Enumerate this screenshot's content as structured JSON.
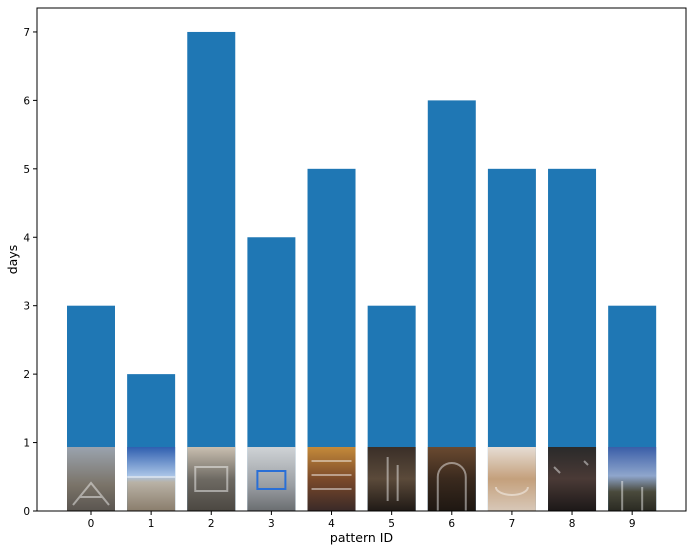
{
  "chart_data": {
    "type": "bar",
    "title": "",
    "xlabel": "pattern ID",
    "ylabel": "days",
    "categories": [
      "0",
      "1",
      "2",
      "3",
      "4",
      "5",
      "6",
      "7",
      "8",
      "9"
    ],
    "values": [
      3,
      2,
      7,
      4,
      5,
      3,
      6,
      5,
      5,
      3
    ],
    "ylim": [
      0,
      7.35
    ],
    "yticks": [
      "0",
      "1",
      "2",
      "3",
      "4",
      "5",
      "6",
      "7"
    ],
    "bar_color": "#1f77b4",
    "grid": false,
    "legend": "none",
    "thumbnails": [
      {
        "pattern": "0",
        "icon": "street-bicycle-photo"
      },
      {
        "pattern": "1",
        "icon": "beach-sky-photo"
      },
      {
        "pattern": "2",
        "icon": "kitchen-people-photo"
      },
      {
        "pattern": "3",
        "icon": "laptop-desk-photo"
      },
      {
        "pattern": "4",
        "icon": "grocery-shelves-photo"
      },
      {
        "pattern": "5",
        "icon": "night-street-photo"
      },
      {
        "pattern": "6",
        "icon": "arch-doorway-photo"
      },
      {
        "pattern": "7",
        "icon": "food-plate-photo"
      },
      {
        "pattern": "8",
        "icon": "night-crowd-photo"
      },
      {
        "pattern": "9",
        "icon": "park-trees-photo"
      }
    ]
  }
}
